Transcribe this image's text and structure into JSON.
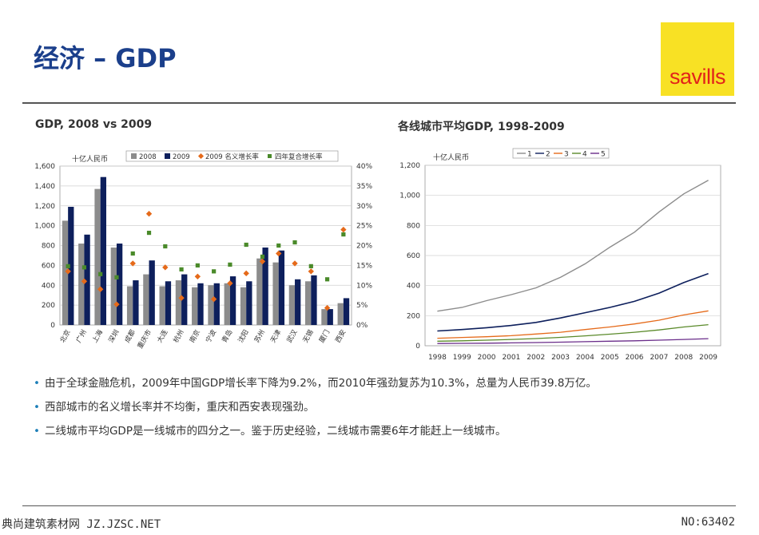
{
  "page": {
    "title": "经济 – GDP",
    "logo_text": "savills",
    "left_subtitle": "GDP, 2008 vs 2009",
    "right_subtitle": "各线城市平均GDP, 1998-2009",
    "bullets": [
      "由于全球金融危机，2009年中国GDP增长率下降为9.2%，而2010年强劲复苏为10.3%，总量为人民币39.8万亿。",
      "西部城市的名义增长率并不均衡，重庆和西安表现强劲。",
      "二线城市平均GDP是一线城市的四分之一。鉴于历史经验，二线城市需要6年才能赶上一线城市。"
    ],
    "footer_left": "典尚建筑素材网 JZ.JZSC.NET",
    "footer_right": "NO:63402"
  },
  "colors": {
    "bar2008": "#8c8c8c",
    "bar2009": "#0d1f5c",
    "nominal": "#e56a1a",
    "cagr": "#4a8a2a",
    "title": "#1b3f8b",
    "logo_bg": "#f8e124",
    "logo_text": "#e2231a",
    "line1": "#8c8c8c",
    "line2": "#0d1f5c",
    "line3": "#e56a1a",
    "line4": "#5a8a2a",
    "line5": "#6a2d8a"
  },
  "chart_data": [
    {
      "type": "bar",
      "ylabel": "十亿人民币",
      "ylim": [
        0,
        1600
      ],
      "yticks": [
        "0",
        "200",
        "400",
        "600",
        "800",
        "1,000",
        "1,200",
        "1,400",
        "1,600"
      ],
      "y2lim": [
        0,
        40
      ],
      "y2ticks": [
        "0%",
        "5%",
        "10%",
        "15%",
        "20%",
        "25%",
        "30%",
        "35%",
        "40%"
      ],
      "legend_position": "top",
      "categories": [
        "北京",
        "广州",
        "上海",
        "深圳",
        "成都",
        "重庆市",
        "大连",
        "杭州",
        "南京",
        "宁波",
        "青岛",
        "沈阳",
        "苏州",
        "天津",
        "武汉",
        "无锡",
        "厦门",
        "西安"
      ],
      "series": [
        {
          "name": "2008",
          "kind": "bar",
          "values": [
            1050,
            820,
            1370,
            780,
            390,
            510,
            390,
            450,
            380,
            400,
            420,
            380,
            670,
            630,
            400,
            440,
            160,
            220
          ]
        },
        {
          "name": "2009",
          "kind": "bar",
          "values": [
            1190,
            910,
            1490,
            820,
            450,
            650,
            440,
            510,
            420,
            420,
            490,
            440,
            780,
            750,
            460,
            500,
            160,
            270
          ]
        },
        {
          "name": "2009 名义增长率",
          "kind": "marker",
          "axis": "y2",
          "values": [
            13.5,
            11.0,
            9.0,
            5.2,
            15.5,
            28.0,
            14.5,
            6.8,
            12.2,
            6.5,
            10.5,
            13.0,
            16.0,
            18.0,
            15.5,
            13.5,
            4.3,
            24.0
          ]
        },
        {
          "name": "四年复合增长率",
          "kind": "marker",
          "axis": "y2",
          "values": [
            14.8,
            14.5,
            12.8,
            12.0,
            18.0,
            23.2,
            19.8,
            14.0,
            15.0,
            13.5,
            15.2,
            20.2,
            17.2,
            20.0,
            20.8,
            14.8,
            11.5,
            22.8
          ]
        }
      ]
    },
    {
      "type": "line",
      "ylabel": "十亿人民币",
      "ylim": [
        0,
        1200
      ],
      "yticks": [
        "0",
        "200",
        "400",
        "600",
        "800",
        "1,000",
        "1,200"
      ],
      "legend_position": "top-left",
      "x": [
        "1998",
        "1999",
        "2000",
        "2001",
        "2002",
        "2003",
        "2004",
        "2005",
        "2006",
        "2007",
        "2008",
        "2009"
      ],
      "series": [
        {
          "name": "1",
          "values": [
            230,
            255,
            300,
            340,
            385,
            455,
            545,
            655,
            755,
            890,
            1010,
            1100
          ]
        },
        {
          "name": "2",
          "values": [
            98,
            108,
            120,
            135,
            155,
            185,
            220,
            255,
            295,
            350,
            420,
            480
          ]
        },
        {
          "name": "3",
          "values": [
            50,
            55,
            60,
            67,
            78,
            90,
            108,
            125,
            145,
            170,
            205,
            232
          ]
        },
        {
          "name": "4",
          "values": [
            30,
            33,
            37,
            42,
            48,
            56,
            66,
            77,
            90,
            105,
            125,
            140
          ]
        },
        {
          "name": "5",
          "values": [
            15,
            16,
            17,
            19,
            21,
            24,
            27,
            30,
            33,
            37,
            42,
            47
          ]
        }
      ]
    }
  ]
}
